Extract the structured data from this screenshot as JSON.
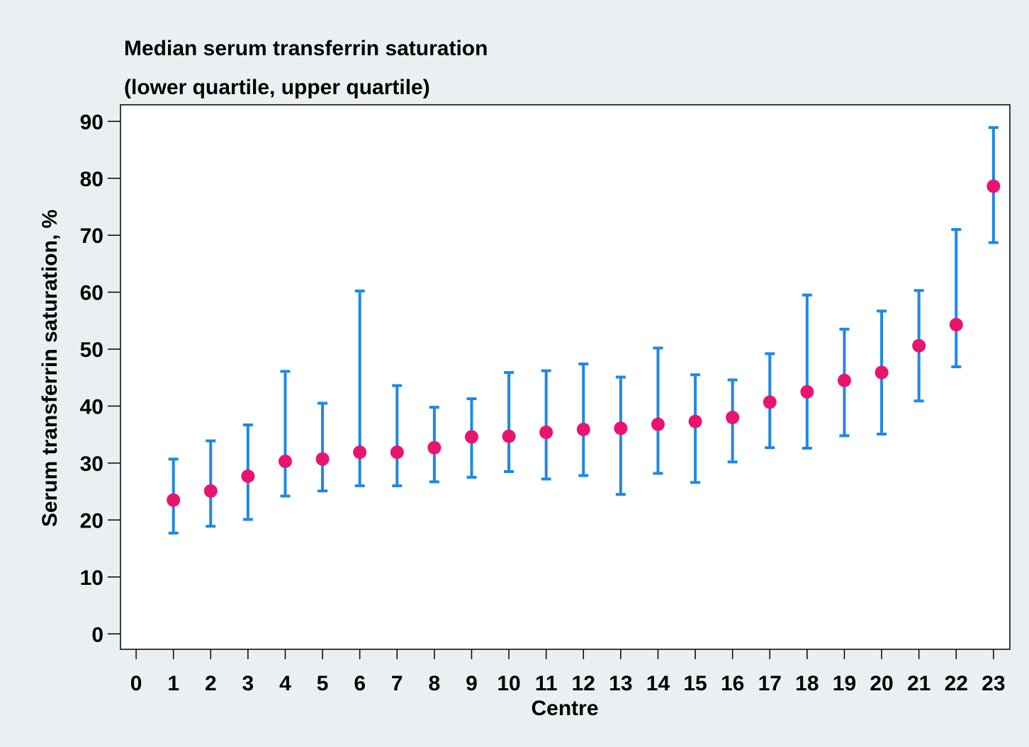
{
  "chart_data": {
    "type": "errorbar",
    "title": "Median serum transferrin saturation",
    "subtitle": "(lower quartile, upper quartile)",
    "xlabel": "Centre",
    "ylabel": "Serum transferrin saturation, %",
    "x": [
      1,
      2,
      3,
      4,
      5,
      6,
      7,
      8,
      9,
      10,
      11,
      12,
      13,
      14,
      15,
      16,
      17,
      18,
      19,
      20,
      21,
      22,
      23
    ],
    "values": [
      23.5,
      25.1,
      27.7,
      30.3,
      30.7,
      31.9,
      31.9,
      32.7,
      34.6,
      34.7,
      35.4,
      35.9,
      36.1,
      36.8,
      37.3,
      38.0,
      40.7,
      42.5,
      44.5,
      45.9,
      50.6,
      54.3,
      78.6
    ],
    "lower": [
      17.7,
      18.9,
      20.1,
      24.2,
      25.1,
      26.0,
      26.0,
      26.7,
      27.5,
      28.5,
      27.2,
      27.8,
      24.5,
      28.2,
      26.6,
      30.2,
      32.7,
      32.6,
      34.8,
      35.1,
      40.9,
      46.9,
      68.7
    ],
    "upper": [
      30.7,
      33.9,
      36.7,
      46.1,
      40.5,
      60.2,
      43.6,
      39.8,
      41.3,
      45.9,
      46.2,
      47.4,
      45.1,
      50.2,
      45.5,
      44.6,
      49.2,
      59.5,
      53.5,
      56.7,
      60.3,
      71.0,
      88.9
    ],
    "point_color": "#e8146e",
    "bar_color": "#1e88e5",
    "xlim": [
      -0.42,
      23.44
    ],
    "ylim": [
      -2.7,
      92.9
    ],
    "xticks": [
      0,
      1,
      2,
      3,
      4,
      5,
      6,
      7,
      8,
      9,
      10,
      11,
      12,
      13,
      14,
      15,
      16,
      17,
      18,
      19,
      20,
      21,
      22,
      23
    ],
    "yticks": [
      0,
      10,
      20,
      30,
      40,
      50,
      60,
      70,
      80,
      90
    ]
  }
}
